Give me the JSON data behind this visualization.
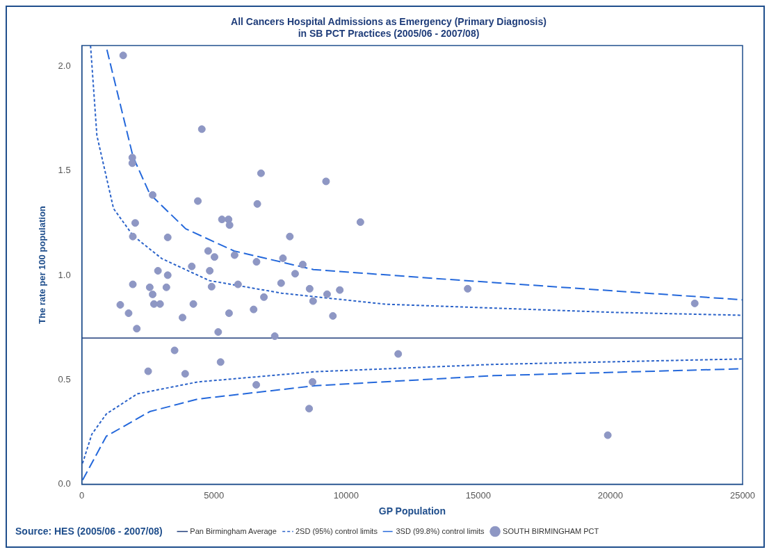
{
  "chart_data": {
    "type": "scatter",
    "title": "All Cancers Hospital Admissions as Emergency (Primary Diagnosis)\nin SB PCT Practices (2005/06 - 2007/08)",
    "xlabel": "GP Population",
    "ylabel": "The rate per 100 population",
    "xlim": [
      0,
      25000
    ],
    "xticks": [
      0,
      5000,
      10000,
      15000,
      20000,
      25000
    ],
    "ylim": [
      0,
      2.1
    ],
    "yticks": [
      {
        "value": 0,
        "label": "0.0"
      },
      {
        "value": 0.5,
        "label": "0.5"
      },
      {
        "value": 1,
        "label": "1.0"
      },
      {
        "value": 1.5,
        "label": "1.5"
      },
      {
        "value": 2,
        "label": "2.0"
      }
    ],
    "grid": false,
    "legend": "bottom",
    "ref_lines": [
      {
        "axis": "y",
        "value": 0.7,
        "label": "Pan Birmingham Average",
        "color": "#1f3d7a",
        "line_style": "solid"
      }
    ],
    "annotations": [
      "Source: HES (2005/06 - 2007/08)"
    ],
    "series": [
      {
        "name": "2SD (95%) control limits",
        "type": "line",
        "line_style": "dotted",
        "marker": "none",
        "color": "#2a62c9",
        "x": [
          330,
          570,
          1200,
          1940,
          3030,
          4830,
          7560,
          11490,
          20120,
          25000
        ],
        "values": [
          2.1,
          1.67,
          1.32,
          1.19,
          1.08,
          0.975,
          0.915,
          0.862,
          0.823,
          0.809
        ]
      },
      {
        "type": "line",
        "line_style": "dotted",
        "marker": "none",
        "color": "#2a62c9",
        "x": [
          27,
          380,
          930,
          2100,
          4390,
          8840,
          15580,
          25000
        ],
        "values": [
          0.1,
          0.24,
          0.337,
          0.433,
          0.49,
          0.539,
          0.574,
          0.6
        ]
      },
      {
        "name": "3SD (99.8%) control limits",
        "type": "line",
        "line_style": "dashed",
        "marker": "none",
        "color": "#2468db",
        "x": [
          950,
          1940,
          2570,
          3930,
          5760,
          8760,
          13290,
          25000
        ],
        "values": [
          2.08,
          1.567,
          1.39,
          1.223,
          1.117,
          1.028,
          0.986,
          0.883
        ]
      },
      {
        "type": "line",
        "line_style": "dashed",
        "marker": "none",
        "color": "#2468db",
        "x": [
          30,
          928,
          2570,
          4390,
          8840,
          15580,
          25000
        ],
        "values": [
          0.02,
          0.23,
          0.348,
          0.408,
          0.472,
          0.52,
          0.553
        ]
      },
      {
        "name": "SOUTH BIRMINGHAM PCT",
        "marker": "circle",
        "color": "#8e97c4",
        "x": [
          1565,
          4540,
          1910,
          1910,
          6780,
          2680,
          4390,
          6640,
          5300,
          5550,
          5590,
          2020,
          1930,
          3250,
          7870,
          4780,
          5020,
          5780,
          6610,
          7610,
          8360,
          8070,
          2880,
          3250,
          4160,
          4840,
          1930,
          2570,
          3200,
          2680,
          4910,
          5910,
          7540,
          8620,
          8750,
          6890,
          1455,
          2730,
          2960,
          4220,
          1770,
          3810,
          5570,
          6500,
          2080,
          5160,
          7300,
          9240,
          10540,
          9760,
          9280,
          9500,
          14600,
          23190,
          3510,
          5250,
          2510,
          3910,
          6600,
          8730,
          8600,
          11970,
          19900
        ],
        "values": [
          2.053,
          1.7,
          1.564,
          1.537,
          1.489,
          1.385,
          1.356,
          1.342,
          1.268,
          1.268,
          1.241,
          1.251,
          1.186,
          1.182,
          1.186,
          1.117,
          1.088,
          1.097,
          1.065,
          1.082,
          1.052,
          1.008,
          1.022,
          1.001,
          1.043,
          1.022,
          0.957,
          0.943,
          0.943,
          0.909,
          0.946,
          0.957,
          0.963,
          0.936,
          0.877,
          0.896,
          0.859,
          0.863,
          0.863,
          0.863,
          0.819,
          0.798,
          0.819,
          0.837,
          0.745,
          0.729,
          0.709,
          1.45,
          1.255,
          0.93,
          0.91,
          0.806,
          0.936,
          0.866,
          0.641,
          0.585,
          0.541,
          0.529,
          0.476,
          0.49,
          0.362,
          0.624,
          0.235
        ]
      }
    ]
  }
}
